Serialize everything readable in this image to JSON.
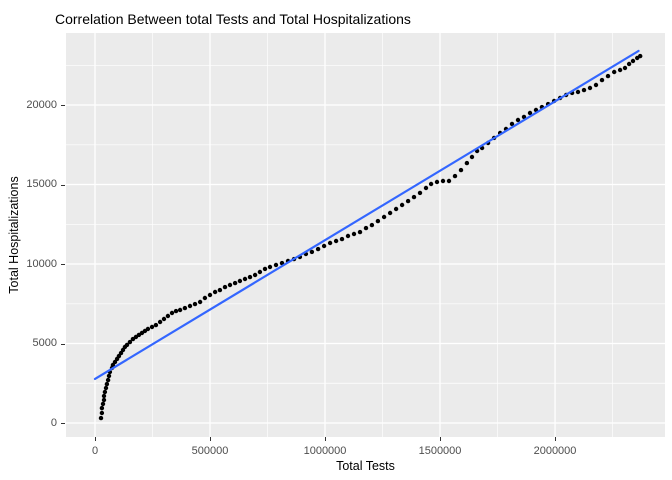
{
  "chart_data": {
    "type": "scatter",
    "title": "Correlation Between total Tests and Total Hospitalizations",
    "xlabel": "Total Tests",
    "ylabel": "Total Hospitalizations",
    "legend": "none",
    "grid": "on",
    "panel_bg": "#EBEBEB",
    "grid_color": "#FFFFFF",
    "point_color": "#000000",
    "line_color": "#3366FF",
    "tick_label_color": "#4D4D4D",
    "xlim": [
      -126000,
      2478000
    ],
    "ylim": [
      -880,
      24530
    ],
    "x_ticks": [
      0,
      500000,
      1000000,
      1500000,
      2000000
    ],
    "x_tick_labels": [
      "0",
      "500000",
      "1000000",
      "1500000",
      "2000000"
    ],
    "x_minor_ticks": [
      250000,
      750000,
      1250000,
      1750000,
      2250000
    ],
    "y_ticks": [
      0,
      5000,
      10000,
      15000,
      20000
    ],
    "y_tick_labels": [
      "0",
      "5000",
      "10000",
      "15000",
      "20000"
    ],
    "y_minor_ticks": [
      2500,
      7500,
      12500,
      17500,
      22500
    ],
    "trend_line": {
      "type": "linear",
      "x1": 0,
      "y1": 2770,
      "x2": 2363000,
      "y2": 23400
    },
    "points": [
      [
        26000,
        310
      ],
      [
        30000,
        630
      ],
      [
        30000,
        940
      ],
      [
        35000,
        1200
      ],
      [
        39000,
        1450
      ],
      [
        39000,
        1700
      ],
      [
        43000,
        1950
      ],
      [
        48000,
        2200
      ],
      [
        52000,
        2450
      ],
      [
        57000,
        2700
      ],
      [
        61000,
        2960
      ],
      [
        65000,
        3210
      ],
      [
        74000,
        3460
      ],
      [
        78000,
        3650
      ],
      [
        87000,
        3840
      ],
      [
        96000,
        4030
      ],
      [
        104000,
        4210
      ],
      [
        113000,
        4400
      ],
      [
        122000,
        4590
      ],
      [
        130000,
        4780
      ],
      [
        139000,
        4910
      ],
      [
        152000,
        5090
      ],
      [
        165000,
        5280
      ],
      [
        178000,
        5410
      ],
      [
        191000,
        5540
      ],
      [
        204000,
        5660
      ],
      [
        217000,
        5790
      ],
      [
        230000,
        5910
      ],
      [
        248000,
        6040
      ],
      [
        265000,
        6160
      ],
      [
        283000,
        6350
      ],
      [
        300000,
        6540
      ],
      [
        317000,
        6730
      ],
      [
        335000,
        6920
      ],
      [
        352000,
        7040
      ],
      [
        370000,
        7110
      ],
      [
        391000,
        7230
      ],
      [
        413000,
        7360
      ],
      [
        435000,
        7480
      ],
      [
        457000,
        7610
      ],
      [
        478000,
        7860
      ],
      [
        500000,
        8050
      ],
      [
        522000,
        8240
      ],
      [
        543000,
        8360
      ],
      [
        565000,
        8550
      ],
      [
        587000,
        8680
      ],
      [
        609000,
        8800
      ],
      [
        630000,
        8930
      ],
      [
        652000,
        9060
      ],
      [
        674000,
        9180
      ],
      [
        696000,
        9310
      ],
      [
        717000,
        9500
      ],
      [
        739000,
        9690
      ],
      [
        761000,
        9810
      ],
      [
        787000,
        9940
      ],
      [
        813000,
        10060
      ],
      [
        839000,
        10190
      ],
      [
        865000,
        10310
      ],
      [
        891000,
        10440
      ],
      [
        917000,
        10630
      ],
      [
        943000,
        10760
      ],
      [
        970000,
        10940
      ],
      [
        996000,
        11130
      ],
      [
        1022000,
        11320
      ],
      [
        1048000,
        11450
      ],
      [
        1074000,
        11570
      ],
      [
        1100000,
        11760
      ],
      [
        1126000,
        11890
      ],
      [
        1152000,
        12010
      ],
      [
        1178000,
        12260
      ],
      [
        1204000,
        12450
      ],
      [
        1230000,
        12700
      ],
      [
        1257000,
        12960
      ],
      [
        1283000,
        13210
      ],
      [
        1309000,
        13460
      ],
      [
        1335000,
        13710
      ],
      [
        1361000,
        13960
      ],
      [
        1387000,
        14210
      ],
      [
        1413000,
        14470
      ],
      [
        1439000,
        14780
      ],
      [
        1461000,
        15030
      ],
      [
        1487000,
        15160
      ],
      [
        1513000,
        15220
      ],
      [
        1539000,
        15220
      ],
      [
        1565000,
        15530
      ],
      [
        1591000,
        15910
      ],
      [
        1617000,
        16350
      ],
      [
        1639000,
        16730
      ],
      [
        1661000,
        17110
      ],
      [
        1683000,
        17300
      ],
      [
        1709000,
        17610
      ],
      [
        1735000,
        17930
      ],
      [
        1761000,
        18240
      ],
      [
        1787000,
        18490
      ],
      [
        1813000,
        18810
      ],
      [
        1839000,
        19060
      ],
      [
        1865000,
        19250
      ],
      [
        1891000,
        19500
      ],
      [
        1917000,
        19690
      ],
      [
        1943000,
        19870
      ],
      [
        1970000,
        20060
      ],
      [
        1996000,
        20250
      ],
      [
        2022000,
        20440
      ],
      [
        2048000,
        20630
      ],
      [
        2074000,
        20760
      ],
      [
        2100000,
        20820
      ],
      [
        2126000,
        20940
      ],
      [
        2152000,
        21070
      ],
      [
        2178000,
        21260
      ],
      [
        2204000,
        21570
      ],
      [
        2230000,
        21820
      ],
      [
        2257000,
        22080
      ],
      [
        2283000,
        22200
      ],
      [
        2304000,
        22330
      ],
      [
        2322000,
        22580
      ],
      [
        2339000,
        22770
      ],
      [
        2357000,
        22960
      ],
      [
        2370000,
        23080
      ]
    ]
  }
}
